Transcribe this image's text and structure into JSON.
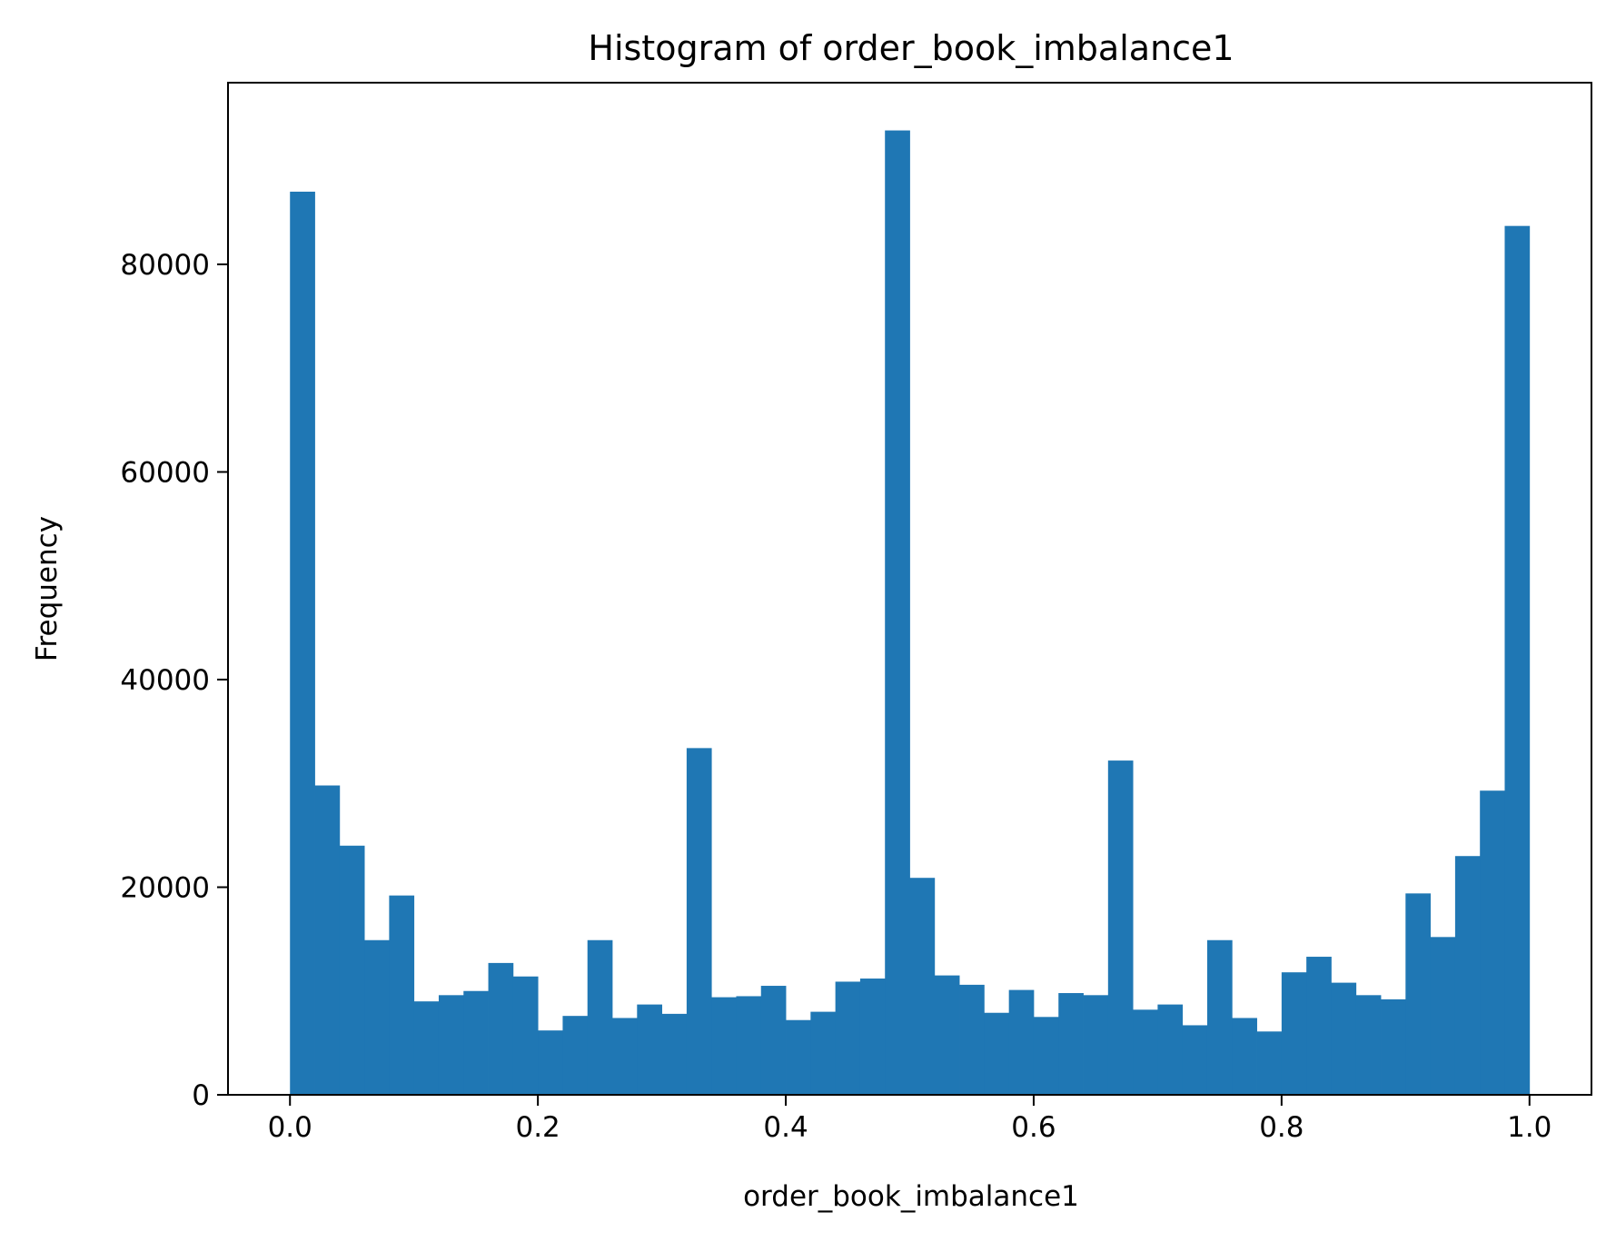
{
  "chart_data": {
    "type": "bar",
    "title": "Histogram of order_book_imbalance1",
    "xlabel": "order_book_imbalance1",
    "ylabel": "Frequency",
    "xlim": [
      -0.05,
      1.05
    ],
    "ylim": [
      0,
      97500
    ],
    "xticks": [
      0.0,
      0.2,
      0.4,
      0.6,
      0.8,
      1.0
    ],
    "xtick_labels": [
      "0.0",
      "0.2",
      "0.4",
      "0.6",
      "0.8",
      "1.0"
    ],
    "yticks": [
      0,
      20000,
      40000,
      60000,
      80000
    ],
    "ytick_labels": [
      "0",
      "20000",
      "40000",
      "60000",
      "80000"
    ],
    "bin_range": [
      0.0,
      1.0
    ],
    "bin_count": 50,
    "values": [
      87000,
      29800,
      24000,
      14900,
      19200,
      9000,
      9600,
      10000,
      12700,
      11400,
      6200,
      7600,
      14900,
      7400,
      8700,
      7800,
      33400,
      9400,
      9500,
      10500,
      7200,
      8000,
      10900,
      11200,
      92900,
      20900,
      11500,
      10600,
      7900,
      10100,
      7500,
      9800,
      9600,
      32200,
      8200,
      8700,
      6700,
      14900,
      7400,
      6100,
      11800,
      13300,
      10800,
      9600,
      9200,
      19400,
      15200,
      23000,
      29300,
      83700
    ],
    "bar_color": "#1f77b4",
    "grid": false,
    "legend": "none"
  }
}
